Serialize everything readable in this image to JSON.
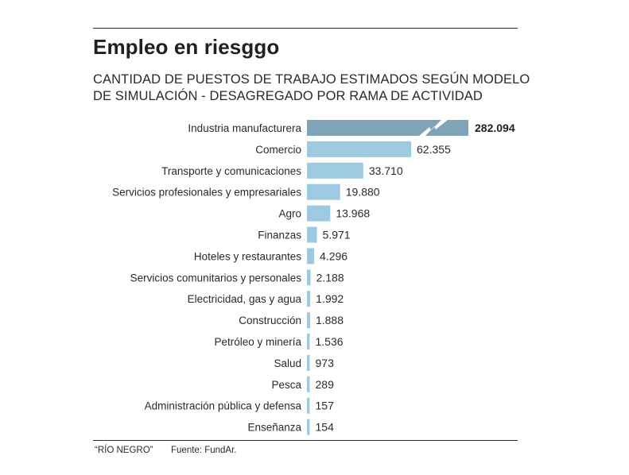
{
  "chart_data": {
    "type": "bar",
    "orientation": "horizontal",
    "title": "Empleo en riesggo",
    "subtitle_lines": [
      "CANTIDAD DE PUESTOS DE TRABAJO ESTIMADOS SEGÚN MODELO",
      "DE SIMULACIÓN - DESAGREGADO POR RAMA DE ACTIVIDAD"
    ],
    "xlabel": "",
    "ylabel": "",
    "grid": false,
    "legend": "none",
    "axis_break": {
      "category": "Industria manufacturera",
      "note": "bar truncated with break mark"
    },
    "categories": [
      "Industria manufacturera",
      "Comercio",
      "Transporte y comunicaciones",
      "Servicios profesionales y empresariales",
      "Agro",
      "Finanzas",
      "Hoteles y restaurantes",
      "Servicios comunitarios y personales",
      "Electricidad, gas y agua",
      "Construcción",
      "Petróleo y minería",
      "Salud",
      "Pesca",
      "Administración pública y defensa",
      "Enseñanza"
    ],
    "values": [
      282094,
      62355,
      33710,
      19880,
      13968,
      5971,
      4296,
      2188,
      1992,
      1888,
      1536,
      973,
      289,
      157,
      154
    ],
    "value_labels": [
      "282.094",
      "62.355",
      "33.710",
      "19.880",
      "13.968",
      "5.971",
      "4.296",
      "2.188",
      "1.992",
      "1.888",
      "1.536",
      "973",
      "289",
      "157",
      "154"
    ],
    "colors": {
      "highlight": "#7fa3b7",
      "bar": "#9ecae1",
      "break_mark": "#ffffff"
    }
  },
  "footer": {
    "credit": "“RÍO NEGRO”",
    "source": "Fuente: FundAr."
  }
}
